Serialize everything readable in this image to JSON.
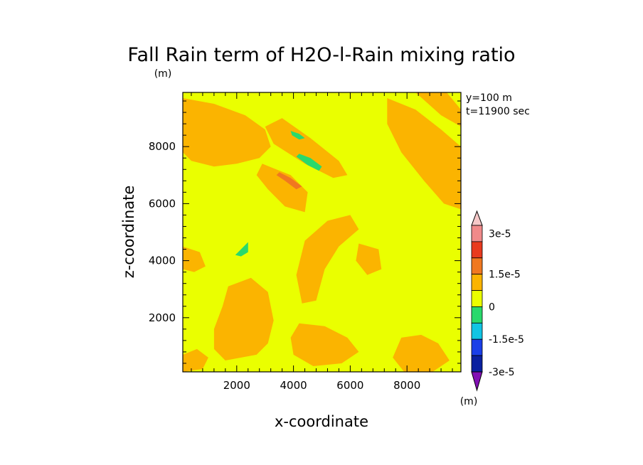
{
  "chart_data": {
    "type": "heatmap",
    "title": "Fall Rain term of H2O-l-Rain mixing ratio",
    "unit_top": "(m)",
    "xlabel": "x-coordinate",
    "ylabel": "z-coordinate",
    "xlim": [
      100,
      9900
    ],
    "ylim": [
      100,
      9900
    ],
    "xticks": [
      "2000",
      "4000",
      "6000",
      "8000"
    ],
    "yticks": [
      "2000",
      "4000",
      "6000",
      "8000"
    ],
    "annotation": [
      "y=100  m",
      "t=11900 sec"
    ],
    "background_color": "#eaff00",
    "colorbar": {
      "unit": "(m)",
      "labels": [
        "3e-5",
        "1.5e-5",
        "0",
        "-1.5e-5",
        "-3e-5"
      ],
      "colors": [
        "#f5c8c8",
        "#f08a8a",
        "#e83a1e",
        "#f07820",
        "#fbb400",
        "#eaff00",
        "#29d96c",
        "#11c4e4",
        "#1a3fe8",
        "#0a20a0",
        "#8210b4"
      ]
    },
    "regions": [
      {
        "level": "0 to 7.5e-6",
        "color": "#fbb400",
        "pts": [
          [
            100,
            9700
          ],
          [
            1200,
            9500
          ],
          [
            2300,
            9100
          ],
          [
            3000,
            8600
          ],
          [
            3200,
            8000
          ],
          [
            2800,
            7600
          ],
          [
            2000,
            7400
          ],
          [
            1200,
            7300
          ],
          [
            400,
            7500
          ],
          [
            100,
            7800
          ]
        ]
      },
      {
        "level": "0 to 7.5e-6",
        "color": "#fbb400",
        "pts": [
          [
            3600,
            9000
          ],
          [
            4600,
            8300
          ],
          [
            5600,
            7500
          ],
          [
            5900,
            7000
          ],
          [
            5400,
            6900
          ],
          [
            4400,
            7400
          ],
          [
            3300,
            8100
          ],
          [
            3000,
            8700
          ]
        ]
      },
      {
        "level": "0 to 7.5e-6",
        "color": "#fbb400",
        "pts": [
          [
            2900,
            7400
          ],
          [
            3900,
            7000
          ],
          [
            4500,
            6400
          ],
          [
            4400,
            5700
          ],
          [
            3700,
            5900
          ],
          [
            3100,
            6500
          ],
          [
            2700,
            7000
          ]
        ]
      },
      {
        "level": "0 to 7.5e-6",
        "color": "#fbb400",
        "pts": [
          [
            7300,
            9700
          ],
          [
            8300,
            9300
          ],
          [
            9200,
            8600
          ],
          [
            9900,
            8000
          ],
          [
            9900,
            5800
          ],
          [
            9300,
            6000
          ],
          [
            8600,
            6800
          ],
          [
            7800,
            7800
          ],
          [
            7300,
            8800
          ]
        ]
      },
      {
        "level": "0 to 7.5e-6",
        "color": "#fbb400",
        "pts": [
          [
            4400,
            4700
          ],
          [
            5200,
            5400
          ],
          [
            6000,
            5600
          ],
          [
            6300,
            5100
          ],
          [
            5600,
            4500
          ],
          [
            5100,
            3700
          ],
          [
            4800,
            2600
          ],
          [
            4300,
            2500
          ],
          [
            4100,
            3500
          ]
        ]
      },
      {
        "level": "0 to 7.5e-6",
        "color": "#fbb400",
        "pts": [
          [
            1700,
            3100
          ],
          [
            2500,
            3400
          ],
          [
            3100,
            2900
          ],
          [
            3300,
            1900
          ],
          [
            3100,
            1100
          ],
          [
            2700,
            700
          ],
          [
            1600,
            500
          ],
          [
            1200,
            900
          ],
          [
            1200,
            1600
          ],
          [
            1500,
            2400
          ]
        ]
      },
      {
        "level": "0 to 7.5e-6",
        "color": "#fbb400",
        "pts": [
          [
            4200,
            1800
          ],
          [
            5100,
            1700
          ],
          [
            5900,
            1300
          ],
          [
            6300,
            800
          ],
          [
            5700,
            400
          ],
          [
            4700,
            300
          ],
          [
            4000,
            700
          ],
          [
            3900,
            1300
          ]
        ]
      },
      {
        "level": "0 to 7.5e-6",
        "color": "#fbb400",
        "pts": [
          [
            7800,
            1300
          ],
          [
            8500,
            1400
          ],
          [
            9100,
            1100
          ],
          [
            9500,
            500
          ],
          [
            8900,
            100
          ],
          [
            7900,
            100
          ],
          [
            7500,
            600
          ]
        ]
      },
      {
        "level": "0 to 7.5e-6",
        "color": "#fbb400",
        "pts": [
          [
            100,
            4500
          ],
          [
            700,
            4300
          ],
          [
            900,
            3800
          ],
          [
            500,
            3600
          ],
          [
            100,
            3700
          ]
        ]
      },
      {
        "level": "0 to 7.5e-6",
        "color": "#fbb400",
        "pts": [
          [
            100,
            700
          ],
          [
            600,
            900
          ],
          [
            1000,
            600
          ],
          [
            800,
            200
          ],
          [
            100,
            100
          ]
        ]
      },
      {
        "level": "0 to 7.5e-6",
        "color": "#fbb400",
        "pts": [
          [
            6300,
            4600
          ],
          [
            7000,
            4400
          ],
          [
            7100,
            3700
          ],
          [
            6600,
            3500
          ],
          [
            6200,
            4000
          ]
        ]
      },
      {
        "level": "0 to 7.5e-6",
        "color": "#fbb400",
        "pts": [
          [
            8300,
            9900
          ],
          [
            9400,
            9900
          ],
          [
            9900,
            9300
          ],
          [
            9900,
            8700
          ],
          [
            9200,
            9100
          ]
        ]
      },
      {
        "level": "7.5e-6 to 1.5e-5",
        "color": "#f07820",
        "pts": [
          [
            3500,
            7100
          ],
          [
            3900,
            6900
          ],
          [
            4300,
            6600
          ],
          [
            4100,
            6500
          ],
          [
            3700,
            6800
          ],
          [
            3400,
            7000
          ]
        ]
      },
      {
        "level": "-7.5e-6 to 0",
        "color": "#29d96c",
        "pts": [
          [
            3900,
            8550
          ],
          [
            4200,
            8450
          ],
          [
            4400,
            8300
          ],
          [
            4200,
            8250
          ],
          [
            3950,
            8400
          ]
        ]
      },
      {
        "level": "-7.5e-6 to 0",
        "color": "#29d96c",
        "pts": [
          [
            4200,
            7750
          ],
          [
            4600,
            7600
          ],
          [
            5000,
            7300
          ],
          [
            4900,
            7150
          ],
          [
            4500,
            7350
          ],
          [
            4100,
            7650
          ]
        ]
      },
      {
        "level": "-7.5e-6 to 0",
        "color": "#29d96c",
        "pts": [
          [
            2100,
            4350
          ],
          [
            2400,
            4650
          ],
          [
            2400,
            4300
          ],
          [
            2150,
            4150
          ],
          [
            1950,
            4200
          ]
        ]
      }
    ]
  }
}
